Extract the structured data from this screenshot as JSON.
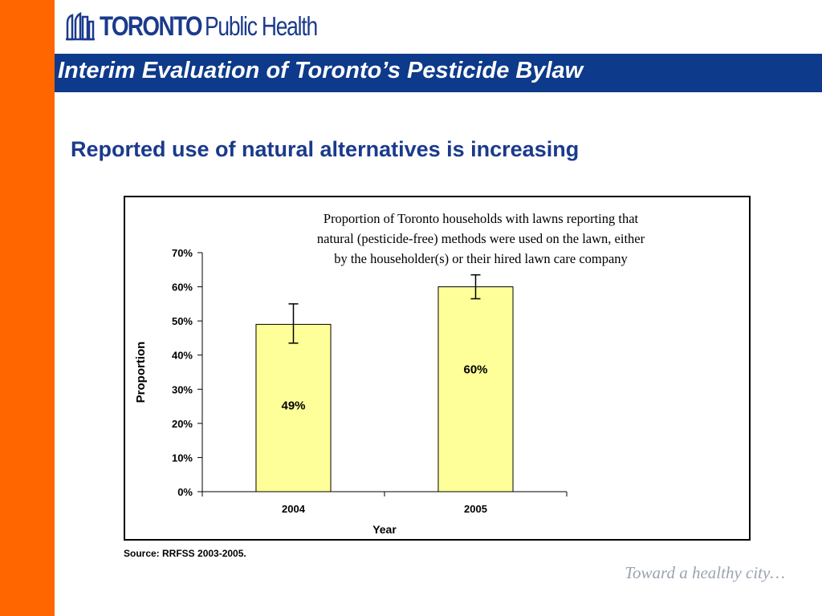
{
  "header": {
    "logo_bold": "TORONTO",
    "logo_light": "Public Health",
    "banner_title": "Interim Evaluation of Toronto’s Pesticide Bylaw"
  },
  "slide": {
    "subtitle": "Reported use of natural alternatives is increasing",
    "source": "Source: RRFSS 2003-2005.",
    "tagline": "Toward a healthy city…"
  },
  "colors": {
    "sidebar": "#ff6600",
    "banner": "#0d3a8a",
    "bar_fill": "#ffff99"
  },
  "chart_data": {
    "type": "bar",
    "title_lines": [
      "Proportion of Toronto households with lawns reporting that",
      "natural (pesticide-free) methods were used on the lawn, either",
      "by the householder(s) or their hired lawn care company"
    ],
    "categories": [
      "2004",
      "2005"
    ],
    "values": [
      49,
      60
    ],
    "data_labels": [
      "49%",
      "60%"
    ],
    "error_bars": [
      [
        43.5,
        55
      ],
      [
        56.5,
        63.5
      ]
    ],
    "xlabel": "Year",
    "ylabel": "Proportion",
    "ylim": [
      0,
      70
    ],
    "yticks": [
      "0%",
      "10%",
      "20%",
      "30%",
      "40%",
      "50%",
      "60%",
      "70%"
    ],
    "grid": false,
    "legend": "none"
  }
}
